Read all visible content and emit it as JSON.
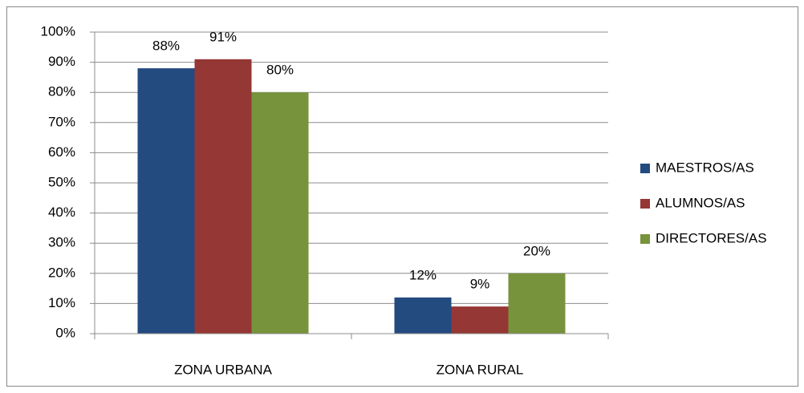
{
  "chart_data": {
    "type": "bar",
    "categories": [
      "ZONA URBANA",
      "ZONA RURAL"
    ],
    "series": [
      {
        "name": "MAESTROS/AS",
        "color": "#234b7f",
        "values": [
          88,
          12
        ],
        "value_labels": [
          "88%",
          "12%"
        ]
      },
      {
        "name": "ALUMNOS/AS",
        "color": "#953735",
        "values": [
          91,
          9
        ],
        "value_labels": [
          "91%",
          "9%"
        ]
      },
      {
        "name": "DIRECTORES/AS",
        "color": "#77933c",
        "values": [
          80,
          20
        ],
        "value_labels": [
          "80%",
          "20%"
        ]
      }
    ],
    "ylim": [
      0,
      100
    ],
    "yticks": [
      {
        "value": 0,
        "label": "0%"
      },
      {
        "value": 10,
        "label": "10%"
      },
      {
        "value": 20,
        "label": "20%"
      },
      {
        "value": 30,
        "label": "30%"
      },
      {
        "value": 40,
        "label": "40%"
      },
      {
        "value": 50,
        "label": "50%"
      },
      {
        "value": 60,
        "label": "60%"
      },
      {
        "value": 70,
        "label": "70%"
      },
      {
        "value": 80,
        "label": "80%"
      },
      {
        "value": 90,
        "label": "90%"
      },
      {
        "value": 100,
        "label": "100%"
      }
    ],
    "grid": true,
    "legend": "right"
  }
}
